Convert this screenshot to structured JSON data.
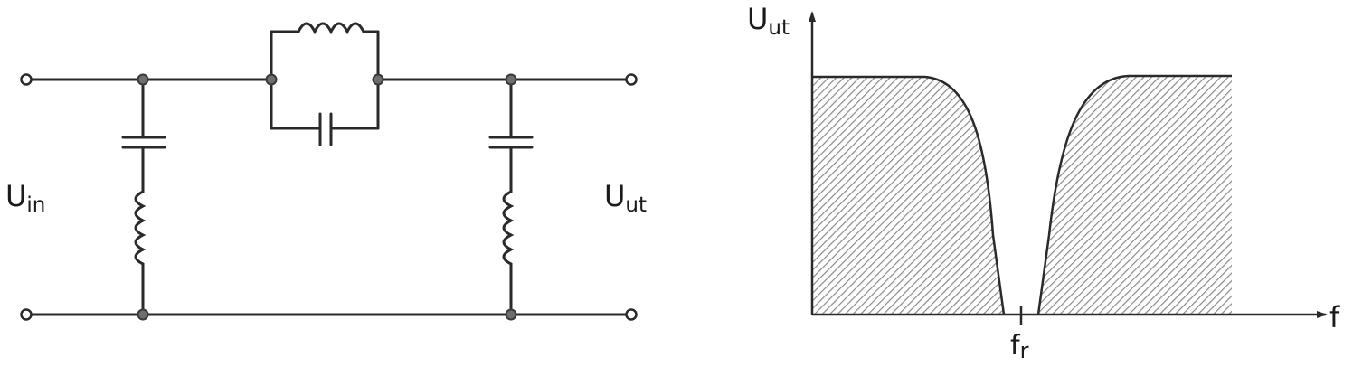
{
  "circuit": {
    "input_label_main": "U",
    "input_label_sub": "in",
    "output_label_main": "U",
    "output_label_sub": "ut"
  },
  "response_plot": {
    "y_axis_label_main": "U",
    "y_axis_label_sub": "ut",
    "x_axis_label": "f",
    "marker_label_main": "f",
    "marker_label_sub": "r"
  },
  "colors": {
    "line": "#2a2a2a",
    "hatch": "#8a8a8a",
    "background": "#ffffff"
  }
}
